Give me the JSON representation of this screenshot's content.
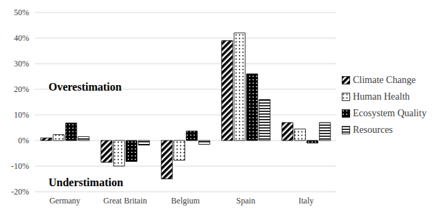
{
  "chart_data": {
    "type": "bar",
    "categories": [
      "Germany",
      "Great Britain",
      "Belgium",
      "Spain",
      "Italy"
    ],
    "series": [
      {
        "name": "Climate Change",
        "color": "#000000",
        "values": [
          1,
          -8.5,
          -15,
          39,
          7
        ]
      },
      {
        "name": "Human Health",
        "color": "#000000",
        "values": [
          2.3,
          -10,
          -7.7,
          42,
          4.5
        ]
      },
      {
        "name": "Ecosystem Quality",
        "color": "#000000",
        "values": [
          6.8,
          -8.2,
          3.7,
          26,
          -1
        ]
      },
      {
        "name": "Resources",
        "color": "#000000",
        "values": [
          1.5,
          -1.8,
          -1.5,
          16,
          7
        ]
      }
    ],
    "ylim": [
      -20,
      50
    ],
    "yticks": [
      {
        "value": -20,
        "label": "-20%"
      },
      {
        "value": -10,
        "label": "-10%"
      },
      {
        "value": 0,
        "label": "0%"
      },
      {
        "value": 10,
        "label": "10%"
      },
      {
        "value": 20,
        "label": "20%"
      },
      {
        "value": 30,
        "label": "30%"
      },
      {
        "value": 40,
        "label": "40%"
      },
      {
        "value": 50,
        "label": "50%"
      }
    ],
    "grid": true,
    "legend": "right",
    "annotations": [
      "Overestimation",
      "Understimation"
    ]
  }
}
